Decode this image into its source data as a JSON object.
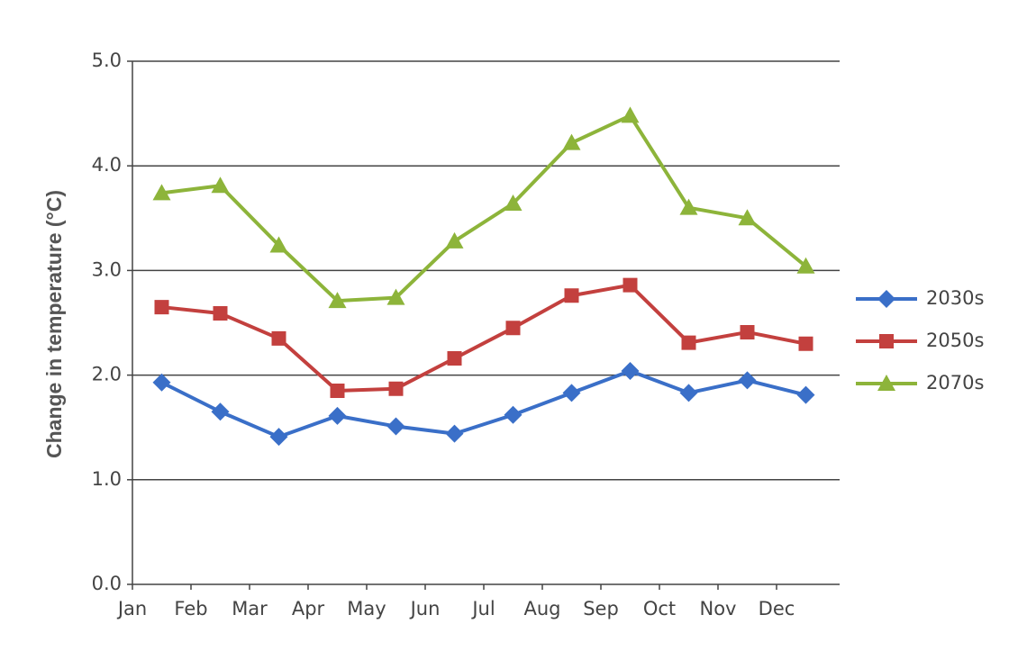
{
  "chart_data": {
    "type": "line",
    "y_label": "Change in temperature (°C)",
    "categories": [
      "Jan",
      "Feb",
      "Mar",
      "Apr",
      "May",
      "Jun",
      "Jul",
      "Aug",
      "Sep",
      "Oct",
      "Nov",
      "Dec"
    ],
    "series": [
      {
        "name": "2030s",
        "color": "#3a6fc8",
        "marker": "diamond",
        "values": [
          1.93,
          1.65,
          1.41,
          1.61,
          1.51,
          1.44,
          1.62,
          1.83,
          2.04,
          1.83,
          1.95,
          1.81
        ]
      },
      {
        "name": "2050s",
        "color": "#c3403e",
        "marker": "square",
        "values": [
          2.65,
          2.59,
          2.35,
          1.85,
          1.87,
          2.16,
          2.45,
          2.76,
          2.86,
          2.31,
          2.41,
          2.3
        ]
      },
      {
        "name": "2070s",
        "color": "#8db43a",
        "marker": "triangle",
        "values": [
          3.74,
          3.81,
          3.24,
          2.71,
          2.74,
          3.28,
          3.64,
          4.22,
          4.48,
          3.6,
          3.5,
          3.04
        ]
      }
    ],
    "ylim": [
      0,
      5
    ],
    "yticks": [
      {
        "value": 0,
        "label": "0.0"
      },
      {
        "value": 1,
        "label": "1.0"
      },
      {
        "value": 2,
        "label": "2.0"
      },
      {
        "value": 3,
        "label": "3.0"
      },
      {
        "value": 4,
        "label": "4.0"
      },
      {
        "value": 5,
        "label": "5.0"
      }
    ],
    "grid": true,
    "legend": "right"
  }
}
